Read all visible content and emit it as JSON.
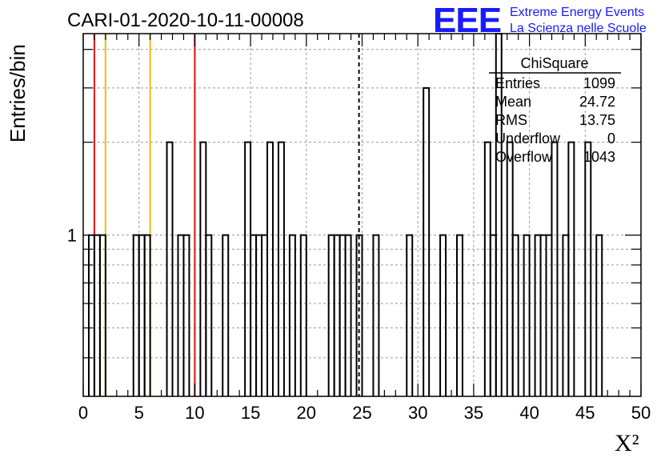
{
  "chart_data": {
    "type": "bar",
    "title": "CARI-01-2020-10-11-00008",
    "xlabel": "X²",
    "ylabel": "Entries/bin",
    "xlim": [
      0,
      50
    ],
    "ylim": [
      0.3,
      4.5
    ],
    "yscale": "log",
    "grid": true,
    "bin_width": 0.5,
    "x_ticks": [
      "0",
      "5",
      "10",
      "15",
      "20",
      "25",
      "30",
      "35",
      "40",
      "45",
      "50"
    ],
    "y_tick_labels": [
      "1"
    ],
    "bins": [
      {
        "x": 0.5,
        "y": 1
      },
      {
        "x": 1.0,
        "y": 1
      },
      {
        "x": 1.5,
        "y": 1
      },
      {
        "x": 4.5,
        "y": 1
      },
      {
        "x": 5.0,
        "y": 1
      },
      {
        "x": 5.5,
        "y": 1
      },
      {
        "x": 7.5,
        "y": 2
      },
      {
        "x": 8.5,
        "y": 1
      },
      {
        "x": 9.0,
        "y": 1
      },
      {
        "x": 10.5,
        "y": 2
      },
      {
        "x": 11.0,
        "y": 1
      },
      {
        "x": 12.5,
        "y": 1
      },
      {
        "x": 14.5,
        "y": 2
      },
      {
        "x": 15.0,
        "y": 1
      },
      {
        "x": 15.5,
        "y": 1
      },
      {
        "x": 16.0,
        "y": 1
      },
      {
        "x": 16.5,
        "y": 2
      },
      {
        "x": 17.5,
        "y": 2
      },
      {
        "x": 18.5,
        "y": 1
      },
      {
        "x": 19.5,
        "y": 1
      },
      {
        "x": 22.0,
        "y": 1
      },
      {
        "x": 22.5,
        "y": 1
      },
      {
        "x": 23.0,
        "y": 1
      },
      {
        "x": 23.5,
        "y": 1
      },
      {
        "x": 24.5,
        "y": 1
      },
      {
        "x": 26.0,
        "y": 1
      },
      {
        "x": 29.0,
        "y": 1
      },
      {
        "x": 30.5,
        "y": 3
      },
      {
        "x": 32.0,
        "y": 1
      },
      {
        "x": 33.5,
        "y": 1
      },
      {
        "x": 36.0,
        "y": 2
      },
      {
        "x": 36.5,
        "y": 1
      },
      {
        "x": 37.0,
        "y": 5
      },
      {
        "x": 38.0,
        "y": 2
      },
      {
        "x": 38.5,
        "y": 1
      },
      {
        "x": 39.5,
        "y": 1
      },
      {
        "x": 40.5,
        "y": 1
      },
      {
        "x": 41.0,
        "y": 1
      },
      {
        "x": 41.5,
        "y": 1
      },
      {
        "x": 42.0,
        "y": 2
      },
      {
        "x": 43.0,
        "y": 1
      },
      {
        "x": 43.5,
        "y": 2
      },
      {
        "x": 45.0,
        "y": 2
      },
      {
        "x": 46.0,
        "y": 1
      }
    ],
    "reference_lines": [
      {
        "x": 1.0,
        "color": "#dd2222",
        "style": "solid"
      },
      {
        "x": 2.0,
        "color": "#f0c020",
        "style": "solid"
      },
      {
        "x": 6.0,
        "color": "#f0c020",
        "style": "solid"
      },
      {
        "x": 10.0,
        "color": "#dd2222",
        "style": "solid"
      },
      {
        "x": 24.72,
        "color": "#000000",
        "style": "dashed"
      }
    ],
    "stats_box": {
      "title": "ChiSquare",
      "rows": [
        {
          "label": "Entries",
          "value": "1099"
        },
        {
          "label": "Mean",
          "value": "24.72"
        },
        {
          "label": "RMS",
          "value": "13.75"
        },
        {
          "label": "Underflow",
          "value": "0"
        },
        {
          "label": "Overflow",
          "value": "1043"
        }
      ]
    },
    "logo": {
      "text": "EEE",
      "line1": "Extreme Energy Events",
      "line2": "La Scienza nelle Scuole",
      "color": "#1a1aff"
    }
  }
}
